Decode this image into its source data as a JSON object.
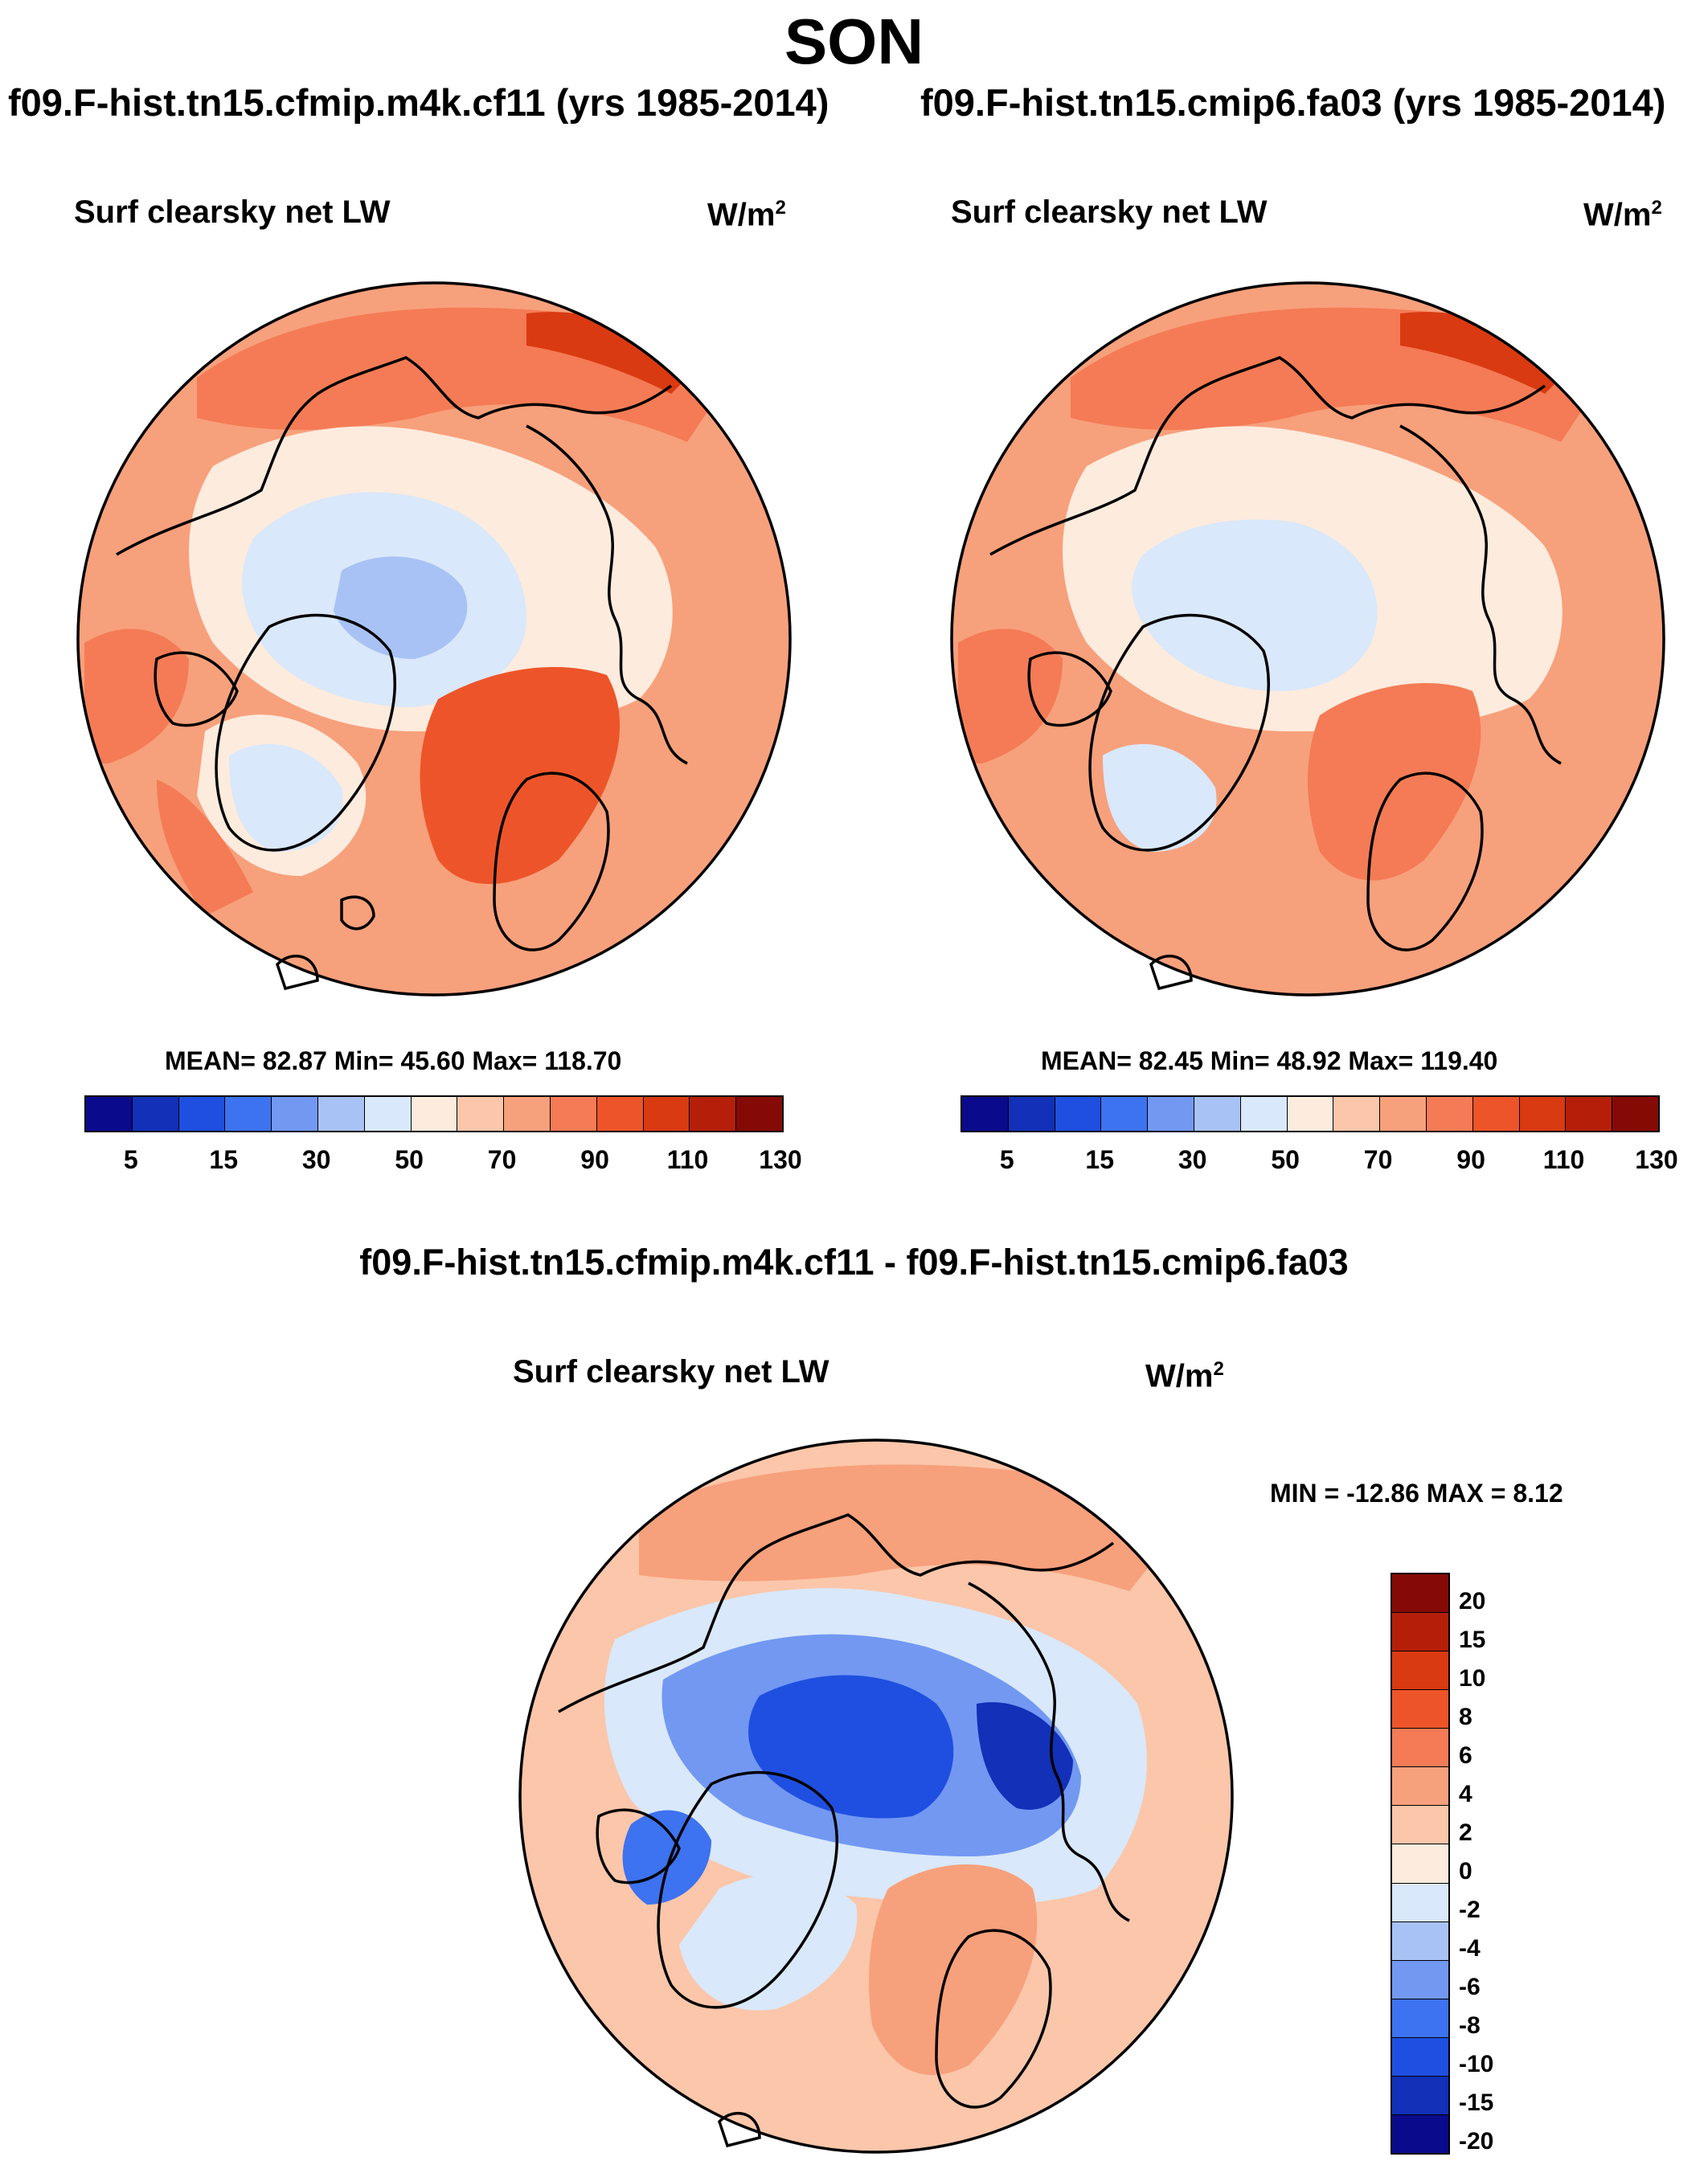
{
  "figure": {
    "season": "SON"
  },
  "panels": [
    {
      "case_title": "f09.F-hist.tn15.cfmip.m4k.cf11 (yrs 1985-2014)",
      "variable": "Surf clearsky net LW",
      "units_base": "W/m",
      "units_exp": "2",
      "stats": "MEAN=  82.87  Min=  45.60  Max= 118.70",
      "map_background": "#F7A07C",
      "colorbar": {
        "colors": [
          "#0A0A8C",
          "#1230B8",
          "#1F4FE0",
          "#3D72F0",
          "#7298F2",
          "#A9C2F5",
          "#D9E8FA",
          "#FDEBDD",
          "#FBC6AA",
          "#F7A07C",
          "#F47B55",
          "#EE5429",
          "#D93A12",
          "#B51F0A",
          "#850A05"
        ],
        "labels": [
          "5",
          "15",
          "30",
          "50",
          "70",
          "90",
          "110",
          "130"
        ]
      }
    },
    {
      "case_title": "f09.F-hist.tn15.cmip6.fa03 (yrs 1985-2014)",
      "variable": "Surf clearsky net LW",
      "units_base": "W/m",
      "units_exp": "2",
      "stats": "MEAN=  82.45  Min=  48.92  Max= 119.40",
      "map_background": "#F7A07C",
      "colorbar": {
        "colors": [
          "#0A0A8C",
          "#1230B8",
          "#1F4FE0",
          "#3D72F0",
          "#7298F2",
          "#A9C2F5",
          "#D9E8FA",
          "#FDEBDD",
          "#FBC6AA",
          "#F7A07C",
          "#F47B55",
          "#EE5429",
          "#D93A12",
          "#B51F0A",
          "#850A05"
        ],
        "labels": [
          "5",
          "15",
          "30",
          "50",
          "70",
          "90",
          "110",
          "130"
        ]
      }
    }
  ],
  "difference": {
    "title": "f09.F-hist.tn15.cfmip.m4k.cf11 - f09.F-hist.tn15.cmip6.fa03",
    "variable": "Surf clearsky net LW",
    "units_base": "W/m",
    "units_exp": "2",
    "stats": "MIN = -12.86 MAX =   8.12",
    "map_background": "#FBC6AA",
    "colorbar": {
      "colors": [
        "#850A05",
        "#B51F0A",
        "#D93A12",
        "#EE5429",
        "#F47B55",
        "#F7A07C",
        "#FBC6AA",
        "#FDEBDD",
        "#D9E8FA",
        "#A9C2F5",
        "#7298F2",
        "#3D72F0",
        "#1F4FE0",
        "#1230B8",
        "#0A0A8C"
      ],
      "labels": [
        "20",
        "15",
        "10",
        "8",
        "6",
        "4",
        "2",
        "0",
        "-2",
        "-4",
        "-6",
        "-8",
        "-10",
        "-15",
        "-20"
      ]
    }
  }
}
